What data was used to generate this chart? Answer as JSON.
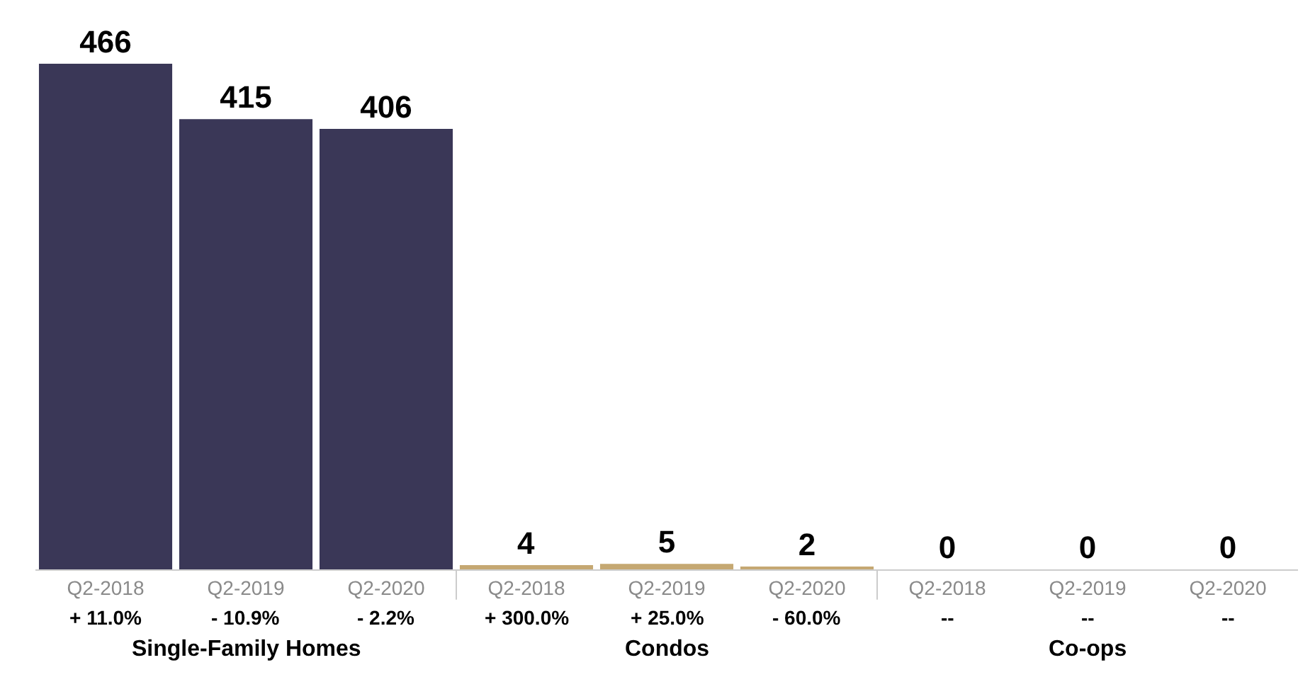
{
  "chart_data": {
    "type": "bar",
    "categories": [
      "Q2-2018",
      "Q2-2019",
      "Q2-2020",
      "Q2-2018",
      "Q2-2019",
      "Q2-2020",
      "Q2-2018",
      "Q2-2019",
      "Q2-2020"
    ],
    "values": [
      466,
      415,
      406,
      4,
      5,
      2,
      0,
      0,
      0
    ],
    "colors": [
      "#3a3757",
      "#3a3757",
      "#3a3757",
      "#c5a872",
      "#c5a872",
      "#c5a872",
      "#c5a872",
      "#c5a872",
      "#c5a872"
    ],
    "data_labels": true,
    "annotations": [
      "+ 11.0%",
      "- 10.9%",
      "- 2.2%",
      "+ 300.0%",
      "+ 25.0%",
      "- 60.0%",
      "--",
      "--",
      "--",
      "Single-Family Homes",
      "Condos",
      "Co-ops"
    ],
    "legend": false
  }
}
